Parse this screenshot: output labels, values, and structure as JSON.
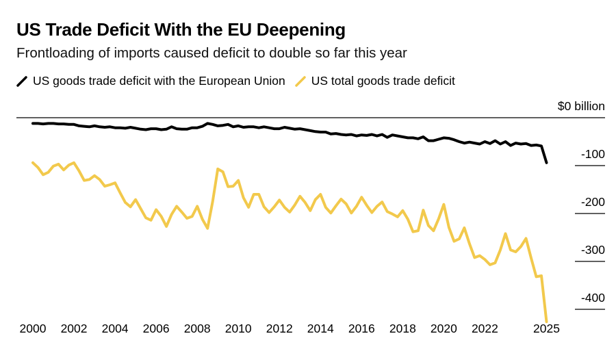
{
  "chart_data": {
    "type": "line",
    "title": "US Trade Deficit With the EU Deepening",
    "subtitle": "Frontloading of imports caused deficit to double so far this year",
    "ylabel": "$0 billion",
    "ylim": [
      -430,
      0
    ],
    "yticks": [
      {
        "value": 0,
        "label": "$0 billion"
      },
      {
        "value": -100,
        "label": "-100"
      },
      {
        "value": -200,
        "label": "-200"
      },
      {
        "value": -300,
        "label": "-300"
      },
      {
        "value": -400,
        "label": "-400"
      }
    ],
    "xlim": [
      2000,
      2025.25
    ],
    "xticks": [
      {
        "value": 2000,
        "label": "2000"
      },
      {
        "value": 2002,
        "label": "2002"
      },
      {
        "value": 2004,
        "label": "2004"
      },
      {
        "value": 2006,
        "label": "2006"
      },
      {
        "value": 2008,
        "label": "2008"
      },
      {
        "value": 2010,
        "label": "2010"
      },
      {
        "value": 2012,
        "label": "2012"
      },
      {
        "value": 2014,
        "label": "2014"
      },
      {
        "value": 2016,
        "label": "2016"
      },
      {
        "value": 2018,
        "label": "2018"
      },
      {
        "value": 2020,
        "label": "2020"
      },
      {
        "value": 2022,
        "label": "2022"
      },
      {
        "value": 2025,
        "label": "2025"
      }
    ],
    "series": [
      {
        "name": "US goods trade deficit with the European Union",
        "color": "#000000",
        "x": [
          2000.0,
          2000.25,
          2000.5,
          2000.75,
          2001.0,
          2001.25,
          2001.5,
          2001.75,
          2002.0,
          2002.25,
          2002.5,
          2002.75,
          2003.0,
          2003.25,
          2003.5,
          2003.75,
          2004.0,
          2004.25,
          2004.5,
          2004.75,
          2005.0,
          2005.25,
          2005.5,
          2005.75,
          2006.0,
          2006.25,
          2006.5,
          2006.75,
          2007.0,
          2007.25,
          2007.5,
          2007.75,
          2008.0,
          2008.25,
          2008.5,
          2008.75,
          2009.0,
          2009.25,
          2009.5,
          2009.75,
          2010.0,
          2010.25,
          2010.5,
          2010.75,
          2011.0,
          2011.25,
          2011.5,
          2011.75,
          2012.0,
          2012.25,
          2012.5,
          2012.75,
          2013.0,
          2013.25,
          2013.5,
          2013.75,
          2014.0,
          2014.25,
          2014.5,
          2014.75,
          2015.0,
          2015.25,
          2015.5,
          2015.75,
          2016.0,
          2016.25,
          2016.5,
          2016.75,
          2017.0,
          2017.25,
          2017.5,
          2017.75,
          2018.0,
          2018.25,
          2018.5,
          2018.75,
          2019.0,
          2019.25,
          2019.5,
          2019.75,
          2020.0,
          2020.25,
          2020.5,
          2020.75,
          2021.0,
          2021.25,
          2021.5,
          2021.75,
          2022.0,
          2022.25,
          2022.5,
          2022.75,
          2023.0,
          2023.25,
          2023.5,
          2023.75,
          2024.0,
          2024.25,
          2024.5,
          2024.75,
          2025.0
        ],
        "values": [
          -12,
          -12,
          -13,
          -12,
          -12,
          -13,
          -13,
          -14,
          -14,
          -17,
          -18,
          -19,
          -17,
          -19,
          -20,
          -19,
          -21,
          -21,
          -22,
          -20,
          -22,
          -24,
          -25,
          -23,
          -23,
          -25,
          -24,
          -19,
          -23,
          -24,
          -24,
          -21,
          -21,
          -18,
          -12,
          -14,
          -17,
          -16,
          -14,
          -19,
          -17,
          -20,
          -19,
          -19,
          -21,
          -19,
          -21,
          -23,
          -23,
          -20,
          -22,
          -24,
          -23,
          -25,
          -27,
          -29,
          -30,
          -30,
          -34,
          -33,
          -35,
          -36,
          -35,
          -38,
          -36,
          -37,
          -35,
          -38,
          -35,
          -41,
          -36,
          -38,
          -40,
          -42,
          -42,
          -44,
          -40,
          -48,
          -48,
          -45,
          -42,
          -43,
          -46,
          -50,
          -53,
          -51,
          -53,
          -55,
          -50,
          -54,
          -48,
          -55,
          -50,
          -58,
          -53,
          -55,
          -54,
          -58,
          -57,
          -59,
          -94
        ]
      },
      {
        "name": "US total goods trade deficit",
        "color": "#f2c94c",
        "x": [
          2000.0,
          2000.25,
          2000.5,
          2000.75,
          2001.0,
          2001.25,
          2001.5,
          2001.75,
          2002.0,
          2002.25,
          2002.5,
          2002.75,
          2003.0,
          2003.25,
          2003.5,
          2003.75,
          2004.0,
          2004.25,
          2004.5,
          2004.75,
          2005.0,
          2005.25,
          2005.5,
          2005.75,
          2006.0,
          2006.25,
          2006.5,
          2006.75,
          2007.0,
          2007.25,
          2007.5,
          2007.75,
          2008.0,
          2008.25,
          2008.5,
          2008.75,
          2009.0,
          2009.25,
          2009.5,
          2009.75,
          2010.0,
          2010.25,
          2010.5,
          2010.75,
          2011.0,
          2011.25,
          2011.5,
          2011.75,
          2012.0,
          2012.25,
          2012.5,
          2012.75,
          2013.0,
          2013.25,
          2013.5,
          2013.75,
          2014.0,
          2014.25,
          2014.5,
          2014.75,
          2015.0,
          2015.25,
          2015.5,
          2015.75,
          2016.0,
          2016.25,
          2016.5,
          2016.75,
          2017.0,
          2017.25,
          2017.5,
          2017.75,
          2018.0,
          2018.25,
          2018.5,
          2018.75,
          2019.0,
          2019.25,
          2019.5,
          2019.75,
          2020.0,
          2020.25,
          2020.5,
          2020.75,
          2021.0,
          2021.25,
          2021.5,
          2021.75,
          2022.0,
          2022.25,
          2022.5,
          2022.75,
          2023.0,
          2023.25,
          2023.5,
          2023.75,
          2024.0,
          2024.25,
          2024.5,
          2024.75,
          2025.0
        ],
        "values": [
          -94,
          -104,
          -119,
          -114,
          -101,
          -97,
          -109,
          -99,
          -94,
          -111,
          -131,
          -129,
          -121,
          -129,
          -143,
          -140,
          -136,
          -157,
          -177,
          -186,
          -171,
          -190,
          -209,
          -214,
          -192,
          -206,
          -227,
          -202,
          -185,
          -197,
          -210,
          -206,
          -185,
          -212,
          -231,
          -175,
          -107,
          -113,
          -144,
          -143,
          -131,
          -167,
          -187,
          -160,
          -160,
          -186,
          -198,
          -186,
          -172,
          -187,
          -197,
          -182,
          -164,
          -177,
          -194,
          -171,
          -160,
          -187,
          -199,
          -184,
          -170,
          -180,
          -199,
          -185,
          -166,
          -183,
          -198,
          -185,
          -176,
          -196,
          -201,
          -207,
          -194,
          -212,
          -238,
          -236,
          -193,
          -225,
          -236,
          -211,
          -181,
          -229,
          -258,
          -253,
          -230,
          -263,
          -292,
          -288,
          -296,
          -307,
          -303,
          -276,
          -242,
          -276,
          -280,
          -269,
          -252,
          -293,
          -332,
          -330,
          -426
        ]
      }
    ]
  }
}
